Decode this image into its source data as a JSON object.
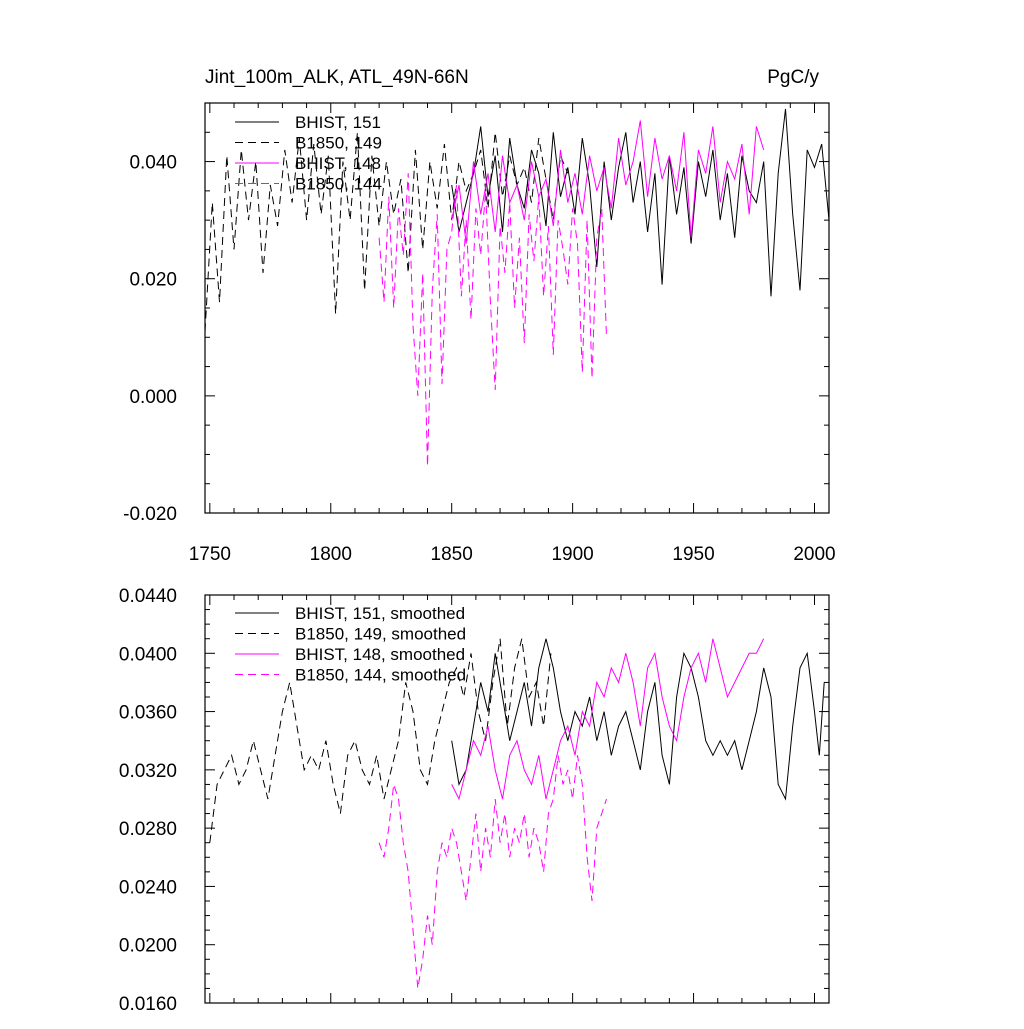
{
  "chart_data": [
    {
      "type": "line",
      "title_left": "Jint_100m_ALK, ATL_49N-66N",
      "title_right": "PgC/y",
      "xlim": [
        1748,
        2006
      ],
      "ylim": [
        -0.02,
        0.05
      ],
      "xticks": [
        1750,
        1800,
        1850,
        1900,
        1950,
        2000
      ],
      "yticks": [
        -0.02,
        0.0,
        0.02,
        0.04
      ],
      "ytick_labels": [
        "-0.020",
        "0.000",
        "0.020",
        "0.040"
      ],
      "legend_location": "top-left",
      "series": [
        {
          "name": "BHIST, 151",
          "color": "#000000",
          "dash": "solid",
          "x": [
            1850,
            1853,
            1856,
            1859,
            1862,
            1865,
            1868,
            1871,
            1874,
            1877,
            1880,
            1883,
            1886,
            1889,
            1892,
            1895,
            1898,
            1901,
            1904,
            1907,
            1910,
            1913,
            1916,
            1919,
            1922,
            1925,
            1928,
            1931,
            1934,
            1937,
            1940,
            1943,
            1946,
            1949,
            1952,
            1955,
            1958,
            1961,
            1964,
            1967,
            1970,
            1973,
            1976,
            1979,
            1982,
            1985,
            1988,
            1991,
            1994,
            1997,
            2000,
            2003,
            2006
          ],
          "y": [
            0.036,
            0.028,
            0.033,
            0.038,
            0.046,
            0.034,
            0.041,
            0.028,
            0.044,
            0.036,
            0.032,
            0.042,
            0.038,
            0.029,
            0.045,
            0.034,
            0.039,
            0.031,
            0.044,
            0.036,
            0.022,
            0.04,
            0.03,
            0.039,
            0.045,
            0.033,
            0.04,
            0.028,
            0.038,
            0.019,
            0.041,
            0.031,
            0.039,
            0.026,
            0.04,
            0.034,
            0.042,
            0.03,
            0.038,
            0.027,
            0.041,
            0.035,
            0.033,
            0.04,
            0.017,
            0.038,
            0.049,
            0.031,
            0.018,
            0.042,
            0.039,
            0.043,
            0.03
          ]
        },
        {
          "name": "B1850, 149",
          "color": "#000000",
          "dash": "8,5",
          "x": [
            1748,
            1751,
            1754,
            1757,
            1760,
            1763,
            1766,
            1769,
            1772,
            1775,
            1778,
            1781,
            1784,
            1787,
            1790,
            1793,
            1796,
            1799,
            1802,
            1805,
            1808,
            1811,
            1814,
            1817,
            1820,
            1823,
            1826,
            1829,
            1832,
            1835,
            1838,
            1841,
            1844,
            1847,
            1850,
            1853,
            1856,
            1859,
            1862,
            1865,
            1868,
            1871,
            1874,
            1877,
            1880,
            1883,
            1886,
            1889,
            1892,
            1895,
            1898
          ],
          "y": [
            0.011,
            0.033,
            0.016,
            0.041,
            0.025,
            0.042,
            0.03,
            0.04,
            0.021,
            0.036,
            0.029,
            0.042,
            0.033,
            0.044,
            0.03,
            0.043,
            0.031,
            0.041,
            0.014,
            0.04,
            0.03,
            0.045,
            0.018,
            0.041,
            0.029,
            0.04,
            0.031,
            0.037,
            0.021,
            0.042,
            0.025,
            0.04,
            0.032,
            0.043,
            0.03,
            0.04,
            0.035,
            0.038,
            0.042,
            0.032,
            0.045,
            0.034,
            0.041,
            0.036,
            0.039,
            0.033,
            0.044,
            0.037,
            0.03,
            0.041,
            0.038
          ]
        },
        {
          "name": "BHIST, 148",
          "color": "#ff00ff",
          "dash": "solid",
          "x": [
            1850,
            1853,
            1856,
            1859,
            1862,
            1865,
            1868,
            1871,
            1874,
            1877,
            1880,
            1883,
            1886,
            1889,
            1892,
            1895,
            1898,
            1901,
            1904,
            1907,
            1910,
            1913,
            1916,
            1919,
            1922,
            1925,
            1928,
            1931,
            1934,
            1937,
            1940,
            1943,
            1946,
            1949,
            1952,
            1955,
            1958,
            1961,
            1964,
            1967,
            1970,
            1973,
            1976,
            1979
          ],
          "y": [
            0.03,
            0.036,
            0.026,
            0.04,
            0.031,
            0.038,
            0.028,
            0.041,
            0.033,
            0.036,
            0.03,
            0.04,
            0.034,
            0.037,
            0.029,
            0.042,
            0.033,
            0.038,
            0.031,
            0.041,
            0.035,
            0.039,
            0.032,
            0.044,
            0.036,
            0.04,
            0.047,
            0.034,
            0.044,
            0.037,
            0.041,
            0.035,
            0.045,
            0.027,
            0.042,
            0.038,
            0.046,
            0.033,
            0.04,
            0.037,
            0.043,
            0.031,
            0.046,
            0.042
          ]
        },
        {
          "name": "B1850, 144",
          "color": "#ff00ff",
          "dash": "8,5",
          "x": [
            1820,
            1822,
            1824,
            1826,
            1828,
            1830,
            1832,
            1834,
            1836,
            1838,
            1840,
            1842,
            1844,
            1846,
            1848,
            1850,
            1852,
            1854,
            1856,
            1858,
            1860,
            1862,
            1864,
            1866,
            1868,
            1870,
            1872,
            1874,
            1876,
            1878,
            1880,
            1882,
            1884,
            1886,
            1888,
            1890,
            1892,
            1894,
            1896,
            1898,
            1900,
            1902,
            1904,
            1906,
            1908,
            1910,
            1912,
            1914
          ],
          "y": [
            0.027,
            0.016,
            0.034,
            0.015,
            0.032,
            0.024,
            0.038,
            0.012,
            0.0,
            0.021,
            -0.012,
            0.018,
            0.031,
            0.002,
            0.025,
            0.028,
            0.036,
            0.017,
            0.03,
            0.013,
            0.032,
            0.024,
            0.035,
            0.016,
            0.001,
            0.029,
            0.021,
            0.033,
            0.015,
            0.027,
            0.009,
            0.031,
            0.023,
            0.034,
            0.017,
            0.029,
            0.007,
            0.03,
            0.025,
            0.019,
            0.032,
            0.026,
            0.004,
            0.03,
            0.003,
            0.027,
            0.032,
            0.01
          ]
        }
      ]
    },
    {
      "type": "line",
      "xlim": [
        1748,
        2006
      ],
      "ylim": [
        0.016,
        0.044
      ],
      "xticks": [
        1750,
        1800,
        1850,
        1900,
        1950,
        2000
      ],
      "yticks": [
        0.016,
        0.02,
        0.024,
        0.028,
        0.032,
        0.036,
        0.04,
        0.044
      ],
      "ytick_labels": [
        "0.0160",
        "0.0200",
        "0.0240",
        "0.0280",
        "0.0320",
        "0.0360",
        "0.0400",
        "0.0440"
      ],
      "legend_location": "top-left",
      "series": [
        {
          "name": "BHIST, 151, smoothed",
          "color": "#000000",
          "dash": "solid",
          "x": [
            1850,
            1853,
            1856,
            1859,
            1862,
            1865,
            1868,
            1871,
            1874,
            1877,
            1880,
            1883,
            1886,
            1889,
            1892,
            1895,
            1898,
            1901,
            1904,
            1907,
            1910,
            1913,
            1916,
            1919,
            1922,
            1925,
            1928,
            1931,
            1934,
            1937,
            1940,
            1943,
            1946,
            1949,
            1952,
            1955,
            1958,
            1961,
            1964,
            1967,
            1970,
            1973,
            1976,
            1979,
            1982,
            1985,
            1988,
            1991,
            1994,
            1997,
            2000,
            2002,
            2004
          ],
          "y": [
            0.034,
            0.031,
            0.032,
            0.035,
            0.038,
            0.036,
            0.04,
            0.037,
            0.034,
            0.036,
            0.038,
            0.035,
            0.039,
            0.041,
            0.039,
            0.036,
            0.034,
            0.036,
            0.035,
            0.037,
            0.034,
            0.036,
            0.033,
            0.035,
            0.036,
            0.034,
            0.032,
            0.036,
            0.038,
            0.033,
            0.031,
            0.037,
            0.04,
            0.039,
            0.037,
            0.034,
            0.033,
            0.034,
            0.033,
            0.034,
            0.032,
            0.034,
            0.036,
            0.039,
            0.037,
            0.031,
            0.03,
            0.035,
            0.039,
            0.04,
            0.036,
            0.033,
            0.038
          ]
        },
        {
          "name": "B1850, 149, smoothed",
          "color": "#000000",
          "dash": "8,5",
          "x": [
            1750,
            1753,
            1756,
            1759,
            1762,
            1765,
            1768,
            1771,
            1774,
            1777,
            1780,
            1783,
            1786,
            1789,
            1792,
            1795,
            1798,
            1801,
            1804,
            1807,
            1810,
            1813,
            1816,
            1819,
            1822,
            1825,
            1828,
            1831,
            1834,
            1837,
            1840,
            1843,
            1846,
            1849,
            1852,
            1855,
            1858,
            1861,
            1864,
            1867,
            1870,
            1873,
            1876,
            1879,
            1882,
            1885,
            1888,
            1891
          ],
          "y": [
            0.027,
            0.031,
            0.032,
            0.033,
            0.031,
            0.032,
            0.034,
            0.032,
            0.03,
            0.033,
            0.036,
            0.038,
            0.035,
            0.032,
            0.033,
            0.032,
            0.034,
            0.031,
            0.029,
            0.033,
            0.034,
            0.032,
            0.031,
            0.033,
            0.03,
            0.032,
            0.034,
            0.038,
            0.036,
            0.032,
            0.031,
            0.034,
            0.036,
            0.038,
            0.039,
            0.037,
            0.04,
            0.036,
            0.034,
            0.038,
            0.041,
            0.035,
            0.039,
            0.041,
            0.037,
            0.038,
            0.035,
            0.04
          ]
        },
        {
          "name": "BHIST, 148, smoothed",
          "color": "#ff00ff",
          "dash": "solid",
          "x": [
            1850,
            1853,
            1856,
            1859,
            1862,
            1865,
            1868,
            1871,
            1874,
            1877,
            1880,
            1883,
            1886,
            1889,
            1892,
            1895,
            1898,
            1901,
            1904,
            1907,
            1910,
            1913,
            1916,
            1919,
            1922,
            1925,
            1928,
            1931,
            1934,
            1937,
            1940,
            1943,
            1946,
            1949,
            1952,
            1955,
            1958,
            1961,
            1964,
            1967,
            1970,
            1973,
            1976,
            1979
          ],
          "y": [
            0.031,
            0.03,
            0.032,
            0.034,
            0.033,
            0.035,
            0.032,
            0.03,
            0.033,
            0.034,
            0.032,
            0.031,
            0.033,
            0.03,
            0.032,
            0.034,
            0.035,
            0.033,
            0.036,
            0.035,
            0.038,
            0.037,
            0.039,
            0.038,
            0.04,
            0.038,
            0.035,
            0.039,
            0.04,
            0.037,
            0.035,
            0.034,
            0.037,
            0.039,
            0.04,
            0.038,
            0.041,
            0.039,
            0.037,
            0.038,
            0.039,
            0.04,
            0.04,
            0.041
          ]
        },
        {
          "name": "B1850, 144, smoothed",
          "color": "#ff00ff",
          "dash": "8,5",
          "x": [
            1820,
            1822,
            1824,
            1826,
            1828,
            1830,
            1832,
            1834,
            1836,
            1838,
            1840,
            1842,
            1844,
            1846,
            1848,
            1850,
            1852,
            1854,
            1856,
            1858,
            1860,
            1862,
            1864,
            1866,
            1868,
            1870,
            1872,
            1874,
            1876,
            1878,
            1880,
            1882,
            1884,
            1886,
            1888,
            1890,
            1892,
            1894,
            1896,
            1898,
            1900,
            1902,
            1904,
            1906,
            1908,
            1910,
            1912,
            1914
          ],
          "y": [
            0.027,
            0.026,
            0.028,
            0.031,
            0.03,
            0.027,
            0.025,
            0.021,
            0.017,
            0.019,
            0.022,
            0.02,
            0.025,
            0.027,
            0.026,
            0.028,
            0.027,
            0.025,
            0.023,
            0.026,
            0.029,
            0.025,
            0.028,
            0.026,
            0.03,
            0.027,
            0.029,
            0.026,
            0.028,
            0.027,
            0.029,
            0.026,
            0.028,
            0.027,
            0.025,
            0.029,
            0.03,
            0.033,
            0.031,
            0.032,
            0.03,
            0.033,
            0.031,
            0.026,
            0.023,
            0.028,
            0.029,
            0.03
          ]
        }
      ]
    }
  ]
}
